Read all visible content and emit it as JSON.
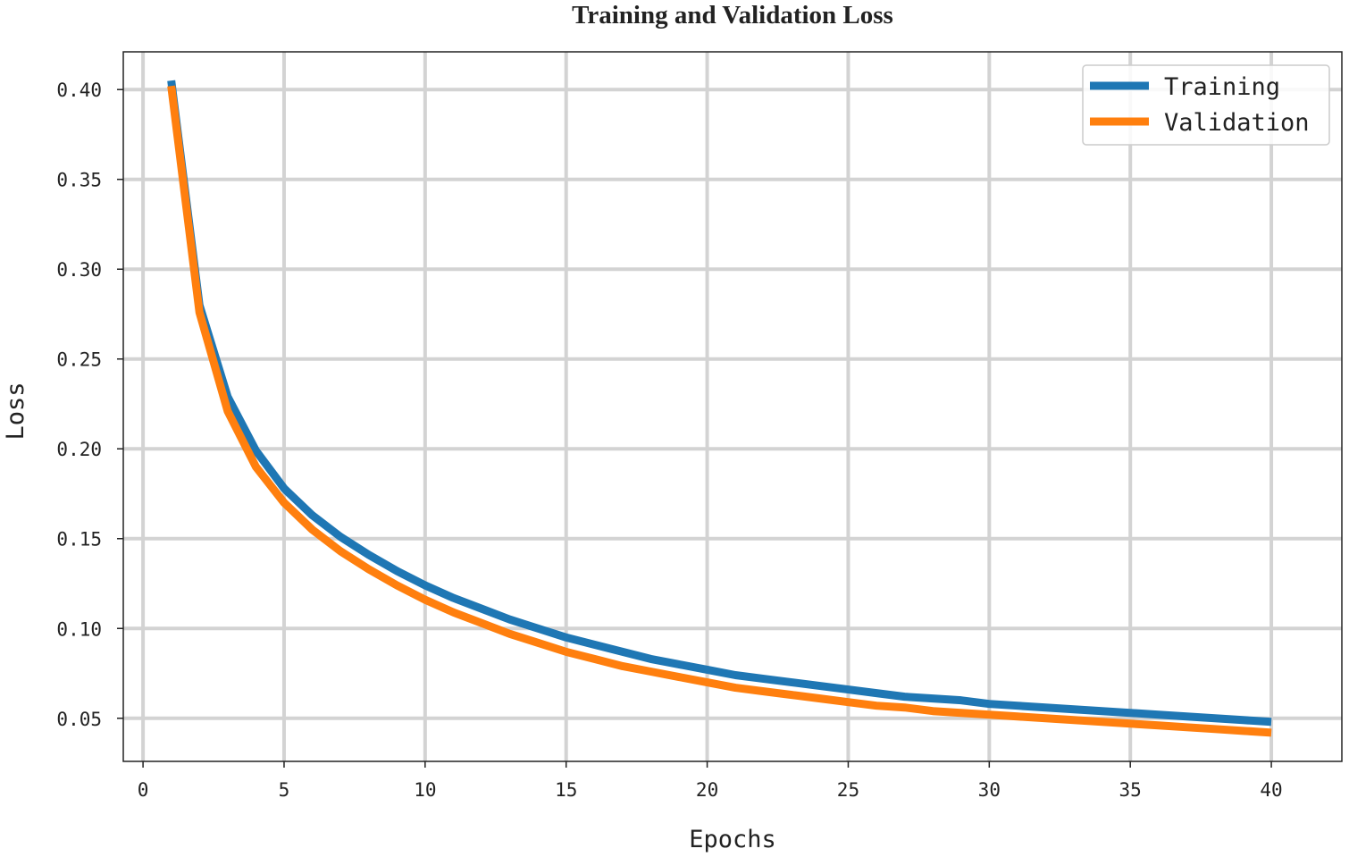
{
  "chart_data": {
    "type": "line",
    "title": "Training and Validation Loss",
    "xlabel": "Epochs",
    "ylabel": "Loss",
    "xlim": [
      -0.7,
      42.5
    ],
    "ylim": [
      0.026,
      0.421
    ],
    "xticks": [
      0,
      5,
      10,
      15,
      20,
      25,
      30,
      35,
      40
    ],
    "xtick_labels": [
      "0",
      "5",
      "10",
      "15",
      "20",
      "25",
      "30",
      "35",
      "40"
    ],
    "yticks": [
      0.05,
      0.1,
      0.15,
      0.2,
      0.25,
      0.3,
      0.35,
      0.4
    ],
    "ytick_labels": [
      "0.05",
      "0.10",
      "0.15",
      "0.20",
      "0.25",
      "0.30",
      "0.35",
      "0.40"
    ],
    "grid": true,
    "legend_position": "top-right",
    "x": [
      1,
      2,
      3,
      4,
      5,
      6,
      7,
      8,
      9,
      10,
      11,
      12,
      13,
      14,
      15,
      16,
      17,
      18,
      19,
      20,
      21,
      22,
      23,
      24,
      25,
      26,
      27,
      28,
      29,
      30,
      31,
      32,
      33,
      34,
      35,
      36,
      37,
      38,
      39,
      40
    ],
    "series": [
      {
        "name": "Training",
        "color": "#1f77b4",
        "values": [
          0.405,
          0.28,
          0.229,
          0.199,
          0.178,
          0.163,
          0.151,
          0.141,
          0.132,
          0.124,
          0.117,
          0.111,
          0.105,
          0.1,
          0.095,
          0.091,
          0.087,
          0.083,
          0.08,
          0.077,
          0.074,
          0.072,
          0.07,
          0.068,
          0.066,
          0.064,
          0.062,
          0.061,
          0.06,
          0.058,
          0.057,
          0.056,
          0.055,
          0.054,
          0.053,
          0.052,
          0.051,
          0.05,
          0.049,
          0.048
        ]
      },
      {
        "name": "Validation",
        "color": "#ff7f0e",
        "values": [
          0.402,
          0.276,
          0.221,
          0.19,
          0.17,
          0.155,
          0.143,
          0.133,
          0.124,
          0.116,
          0.109,
          0.103,
          0.097,
          0.092,
          0.087,
          0.083,
          0.079,
          0.076,
          0.073,
          0.07,
          0.067,
          0.065,
          0.063,
          0.061,
          0.059,
          0.057,
          0.056,
          0.054,
          0.053,
          0.052,
          0.051,
          0.05,
          0.049,
          0.048,
          0.047,
          0.046,
          0.045,
          0.044,
          0.043,
          0.042
        ]
      }
    ]
  }
}
